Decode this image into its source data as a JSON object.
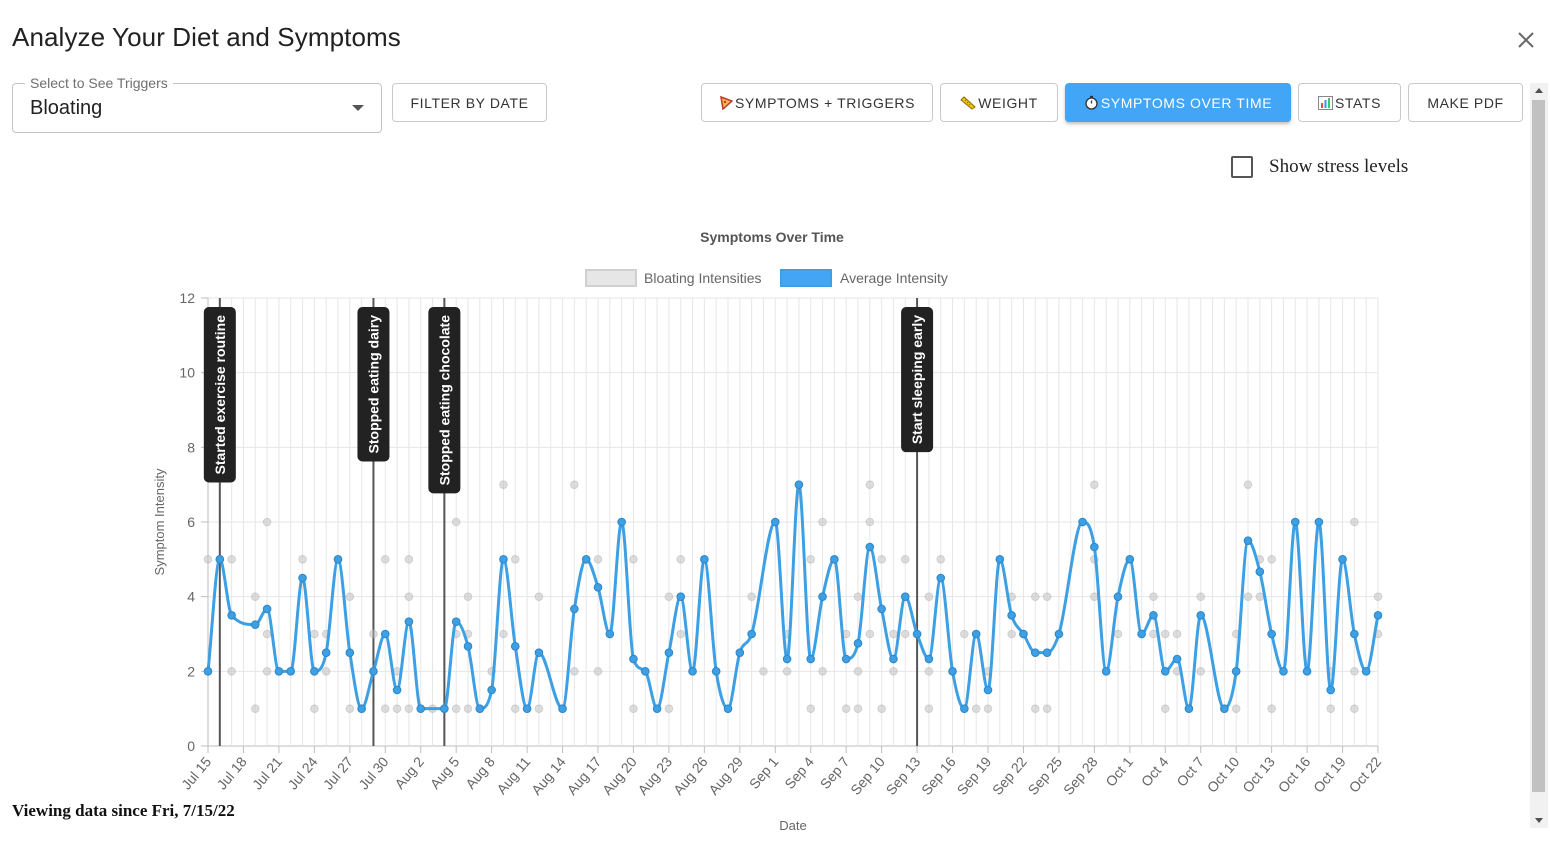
{
  "dialog": {
    "title": "Analyze Your Diet and Symptoms"
  },
  "trigger_select": {
    "label": "Select to See Triggers",
    "value": "Bloating"
  },
  "buttons": {
    "filter_by_date": "FILTER BY DATE",
    "symptoms_triggers": "SYMPTOMS + TRIGGERS",
    "weight": "WEIGHT",
    "symptoms_over_time": "SYMPTOMS OVER TIME",
    "stats": "STATS",
    "make_pdf": "MAKE PDF"
  },
  "icons": {
    "symptoms_triggers": "pizza-icon",
    "weight": "ruler-icon",
    "symptoms_over_time": "stopwatch-icon",
    "stats": "bar-chart-icon",
    "close": "close-icon"
  },
  "stress_toggle": {
    "label": "Show stress levels",
    "checked": false
  },
  "footer": {
    "text": "Viewing data since Fri, 7/15/22"
  },
  "colors": {
    "accent": "#42a5f5",
    "average_line": "#3d9fe4",
    "scatter_points": "#c8c8c8",
    "annotation_bg": "#222222"
  },
  "chart_data": {
    "type": "line",
    "title": "Symptoms Over Time",
    "xlabel": "Date",
    "ylabel": "Symptom Intensity",
    "ylim": [
      0,
      12
    ],
    "yticks": [
      0,
      2,
      4,
      6,
      8,
      10,
      12
    ],
    "xlim": [
      "2022-07-15",
      "2022-10-22"
    ],
    "x_tick_labels": [
      "Jul 15",
      "Jul 18",
      "Jul 21",
      "Jul 24",
      "Jul 27",
      "Jul 30",
      "Aug 2",
      "Aug 5",
      "Aug 8",
      "Aug 11",
      "Aug 14",
      "Aug 17",
      "Aug 20",
      "Aug 23",
      "Aug 26",
      "Aug 29",
      "Sep 1",
      "Sep 4",
      "Sep 7",
      "Sep 10",
      "Sep 13",
      "Sep 16",
      "Sep 19",
      "Sep 22",
      "Sep 25",
      "Sep 28",
      "Oct 1",
      "Oct 4",
      "Oct 7",
      "Oct 10",
      "Oct 13",
      "Oct 16",
      "Oct 19",
      "Oct 22"
    ],
    "grid": true,
    "legend": {
      "position": "top"
    },
    "series": [
      {
        "name": "Bloating Intensities",
        "type": "scatter",
        "points": [
          [
            "2022-07-15",
            5
          ],
          [
            "2022-07-16",
            5
          ],
          [
            "2022-07-17",
            5
          ],
          [
            "2022-07-17",
            2
          ],
          [
            "2022-07-19",
            4
          ],
          [
            "2022-07-19",
            1
          ],
          [
            "2022-07-20",
            6
          ],
          [
            "2022-07-20",
            3
          ],
          [
            "2022-07-20",
            2
          ],
          [
            "2022-07-23",
            5
          ],
          [
            "2022-07-24",
            3
          ],
          [
            "2022-07-24",
            1
          ],
          [
            "2022-07-25",
            3
          ],
          [
            "2022-07-25",
            2
          ],
          [
            "2022-07-26",
            5
          ],
          [
            "2022-07-27",
            4
          ],
          [
            "2022-07-27",
            1
          ],
          [
            "2022-07-28",
            1
          ],
          [
            "2022-07-29",
            3
          ],
          [
            "2022-07-30",
            5
          ],
          [
            "2022-07-30",
            1
          ],
          [
            "2022-07-31",
            2
          ],
          [
            "2022-07-31",
            1
          ],
          [
            "2022-08-01",
            5
          ],
          [
            "2022-08-01",
            4
          ],
          [
            "2022-08-01",
            1
          ],
          [
            "2022-08-03",
            1
          ],
          [
            "2022-08-04",
            1
          ],
          [
            "2022-08-05",
            6
          ],
          [
            "2022-08-05",
            3
          ],
          [
            "2022-08-05",
            1
          ],
          [
            "2022-08-06",
            4
          ],
          [
            "2022-08-06",
            3
          ],
          [
            "2022-08-06",
            1
          ],
          [
            "2022-08-07",
            1
          ],
          [
            "2022-08-08",
            2
          ],
          [
            "2022-08-09",
            7
          ],
          [
            "2022-08-09",
            3
          ],
          [
            "2022-08-10",
            5
          ],
          [
            "2022-08-10",
            1
          ],
          [
            "2022-08-12",
            4
          ],
          [
            "2022-08-12",
            1
          ],
          [
            "2022-08-14",
            1
          ],
          [
            "2022-08-15",
            7
          ],
          [
            "2022-08-15",
            2
          ],
          [
            "2022-08-17",
            5
          ],
          [
            "2022-08-17",
            2
          ],
          [
            "2022-08-20",
            5
          ],
          [
            "2022-08-20",
            1
          ],
          [
            "2022-08-23",
            4
          ],
          [
            "2022-08-23",
            1
          ],
          [
            "2022-08-24",
            5
          ],
          [
            "2022-08-24",
            3
          ],
          [
            "2022-08-30",
            4
          ],
          [
            "2022-08-31",
            2
          ],
          [
            "2022-09-02",
            3
          ],
          [
            "2022-09-02",
            2
          ],
          [
            "2022-09-04",
            5
          ],
          [
            "2022-09-04",
            1
          ],
          [
            "2022-09-05",
            6
          ],
          [
            "2022-09-05",
            2
          ],
          [
            "2022-09-07",
            3
          ],
          [
            "2022-09-07",
            1
          ],
          [
            "2022-09-08",
            4
          ],
          [
            "2022-09-08",
            2
          ],
          [
            "2022-09-08",
            1
          ],
          [
            "2022-09-09",
            7
          ],
          [
            "2022-09-09",
            6
          ],
          [
            "2022-09-09",
            3
          ],
          [
            "2022-09-10",
            5
          ],
          [
            "2022-09-10",
            1
          ],
          [
            "2022-09-11",
            3
          ],
          [
            "2022-09-11",
            2
          ],
          [
            "2022-09-12",
            5
          ],
          [
            "2022-09-12",
            3
          ],
          [
            "2022-09-13",
            3
          ],
          [
            "2022-09-14",
            4
          ],
          [
            "2022-09-14",
            2
          ],
          [
            "2022-09-14",
            1
          ],
          [
            "2022-09-15",
            5
          ],
          [
            "2022-09-17",
            3
          ],
          [
            "2022-09-18",
            1
          ],
          [
            "2022-09-19",
            2
          ],
          [
            "2022-09-19",
            1
          ],
          [
            "2022-09-21",
            4
          ],
          [
            "2022-09-21",
            3
          ],
          [
            "2022-09-22",
            3
          ],
          [
            "2022-09-23",
            4
          ],
          [
            "2022-09-23",
            1
          ],
          [
            "2022-09-24",
            4
          ],
          [
            "2022-09-24",
            1
          ],
          [
            "2022-09-28",
            7
          ],
          [
            "2022-09-28",
            5
          ],
          [
            "2022-09-28",
            4
          ],
          [
            "2022-09-29",
            2
          ],
          [
            "2022-09-30",
            3
          ],
          [
            "2022-10-01",
            5
          ],
          [
            "2022-10-03",
            4
          ],
          [
            "2022-10-03",
            3
          ],
          [
            "2022-10-04",
            3
          ],
          [
            "2022-10-04",
            1
          ],
          [
            "2022-10-05",
            3
          ],
          [
            "2022-10-05",
            2
          ],
          [
            "2022-10-07",
            4
          ],
          [
            "2022-10-07",
            2
          ],
          [
            "2022-10-09",
            1
          ],
          [
            "2022-10-10",
            3
          ],
          [
            "2022-10-10",
            1
          ],
          [
            "2022-10-11",
            7
          ],
          [
            "2022-10-11",
            4
          ],
          [
            "2022-10-12",
            5
          ],
          [
            "2022-10-12",
            4
          ],
          [
            "2022-10-13",
            5
          ],
          [
            "2022-10-13",
            1
          ],
          [
            "2022-10-15",
            6
          ],
          [
            "2022-10-18",
            2
          ],
          [
            "2022-10-18",
            1
          ],
          [
            "2022-10-19",
            5
          ],
          [
            "2022-10-20",
            6
          ],
          [
            "2022-10-20",
            2
          ],
          [
            "2022-10-20",
            1
          ],
          [
            "2022-10-22",
            4
          ],
          [
            "2022-10-22",
            3
          ]
        ]
      },
      {
        "name": "Average Intensity",
        "type": "line",
        "points": [
          [
            "2022-07-15",
            2
          ],
          [
            "2022-07-16",
            5
          ],
          [
            "2022-07-17",
            3.5
          ],
          [
            "2022-07-19",
            3.25
          ],
          [
            "2022-07-20",
            3.67
          ],
          [
            "2022-07-21",
            2
          ],
          [
            "2022-07-22",
            2
          ],
          [
            "2022-07-23",
            4.5
          ],
          [
            "2022-07-24",
            2
          ],
          [
            "2022-07-25",
            2.5
          ],
          [
            "2022-07-26",
            5
          ],
          [
            "2022-07-27",
            2.5
          ],
          [
            "2022-07-28",
            1
          ],
          [
            "2022-07-29",
            2
          ],
          [
            "2022-07-30",
            3
          ],
          [
            "2022-07-31",
            1.5
          ],
          [
            "2022-08-01",
            3.33
          ],
          [
            "2022-08-02",
            1
          ],
          [
            "2022-08-04",
            1
          ],
          [
            "2022-08-05",
            3.33
          ],
          [
            "2022-08-06",
            2.67
          ],
          [
            "2022-08-07",
            1
          ],
          [
            "2022-08-08",
            1.5
          ],
          [
            "2022-08-09",
            5
          ],
          [
            "2022-08-10",
            2.67
          ],
          [
            "2022-08-11",
            1
          ],
          [
            "2022-08-12",
            2.5
          ],
          [
            "2022-08-14",
            1
          ],
          [
            "2022-08-15",
            3.67
          ],
          [
            "2022-08-16",
            5
          ],
          [
            "2022-08-17",
            4.25
          ],
          [
            "2022-08-18",
            3
          ],
          [
            "2022-08-19",
            6
          ],
          [
            "2022-08-20",
            2.33
          ],
          [
            "2022-08-21",
            2
          ],
          [
            "2022-08-22",
            1
          ],
          [
            "2022-08-23",
            2.5
          ],
          [
            "2022-08-24",
            4
          ],
          [
            "2022-08-25",
            2
          ],
          [
            "2022-08-26",
            5
          ],
          [
            "2022-08-27",
            2
          ],
          [
            "2022-08-28",
            1
          ],
          [
            "2022-08-29",
            2.5
          ],
          [
            "2022-08-30",
            3
          ],
          [
            "2022-09-01",
            6
          ],
          [
            "2022-09-02",
            2.33
          ],
          [
            "2022-09-03",
            7
          ],
          [
            "2022-09-04",
            2.33
          ],
          [
            "2022-09-05",
            4
          ],
          [
            "2022-09-06",
            5
          ],
          [
            "2022-09-07",
            2.33
          ],
          [
            "2022-09-08",
            2.75
          ],
          [
            "2022-09-09",
            5.33
          ],
          [
            "2022-09-10",
            3.67
          ],
          [
            "2022-09-11",
            2.33
          ],
          [
            "2022-09-12",
            4
          ],
          [
            "2022-09-13",
            3
          ],
          [
            "2022-09-14",
            2.33
          ],
          [
            "2022-09-15",
            4.5
          ],
          [
            "2022-09-16",
            2
          ],
          [
            "2022-09-17",
            1
          ],
          [
            "2022-09-18",
            3
          ],
          [
            "2022-09-19",
            1.5
          ],
          [
            "2022-09-20",
            5
          ],
          [
            "2022-09-21",
            3.5
          ],
          [
            "2022-09-22",
            3
          ],
          [
            "2022-09-23",
            2.5
          ],
          [
            "2022-09-24",
            2.5
          ],
          [
            "2022-09-25",
            3
          ],
          [
            "2022-09-27",
            6
          ],
          [
            "2022-09-28",
            5.33
          ],
          [
            "2022-09-29",
            2
          ],
          [
            "2022-09-30",
            4
          ],
          [
            "2022-10-01",
            5
          ],
          [
            "2022-10-02",
            3
          ],
          [
            "2022-10-03",
            3.5
          ],
          [
            "2022-10-04",
            2
          ],
          [
            "2022-10-05",
            2.33
          ],
          [
            "2022-10-06",
            1
          ],
          [
            "2022-10-07",
            3.5
          ],
          [
            "2022-10-09",
            1
          ],
          [
            "2022-10-10",
            2
          ],
          [
            "2022-10-11",
            5.5
          ],
          [
            "2022-10-12",
            4.67
          ],
          [
            "2022-10-13",
            3
          ],
          [
            "2022-10-14",
            2
          ],
          [
            "2022-10-15",
            6
          ],
          [
            "2022-10-16",
            2
          ],
          [
            "2022-10-17",
            6
          ],
          [
            "2022-10-18",
            1.5
          ],
          [
            "2022-10-19",
            5
          ],
          [
            "2022-10-20",
            3
          ],
          [
            "2022-10-21",
            2
          ],
          [
            "2022-10-22",
            3.5
          ]
        ]
      }
    ],
    "annotations": [
      {
        "date": "2022-07-16",
        "label": "Started exercise routine"
      },
      {
        "date": "2022-07-29",
        "label": "Stopped eating dairy"
      },
      {
        "date": "2022-08-04",
        "label": "Stopped eating chocolate"
      },
      {
        "date": "2022-09-13",
        "label": "Start sleeping early"
      }
    ]
  }
}
